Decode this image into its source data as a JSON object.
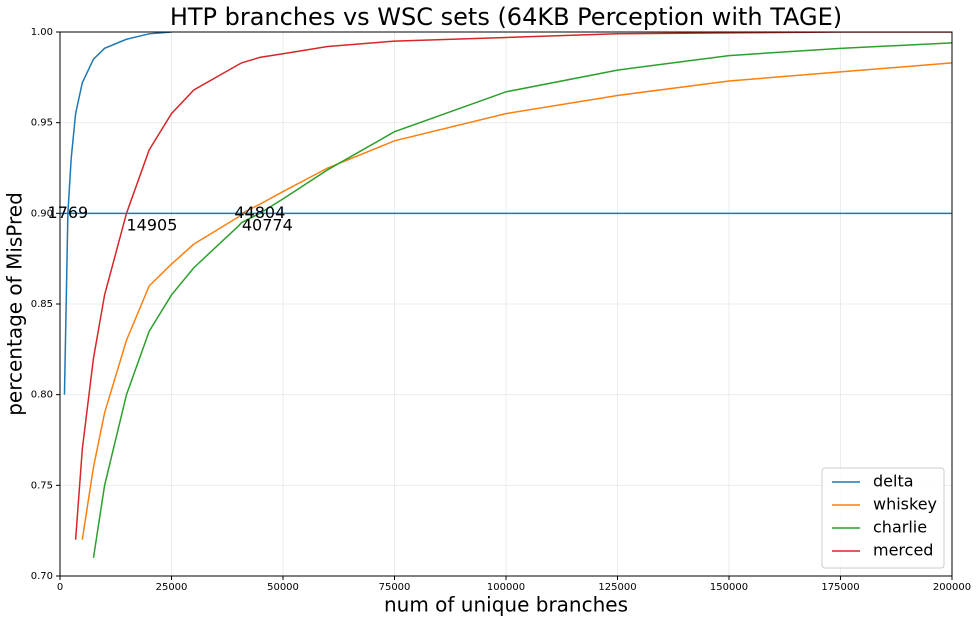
{
  "chart_data": {
    "type": "line",
    "title": "HTP branches vs WSC sets (64KB Perception with TAGE)",
    "x_label": "num of unique branches",
    "y_label": "percentage of MisPred",
    "x": [
      1000,
      1769,
      2500,
      3500,
      5000,
      7500,
      10000,
      14905,
      20000,
      25000,
      30000,
      40000,
      40774,
      44804,
      50000,
      60000,
      75000,
      100000,
      125000,
      150000,
      175000,
      200000
    ],
    "series": [
      {
        "name": "delta",
        "color": "#1f77b4",
        "values": [
          0.8,
          0.9,
          0.93,
          0.955,
          0.972,
          0.985,
          0.991,
          0.996,
          0.999,
          1.0,
          null,
          null,
          null,
          null,
          null,
          null,
          null,
          null,
          null,
          null,
          null,
          null
        ]
      },
      {
        "name": "whiskey",
        "color": "#ff7f0e",
        "values": [
          null,
          null,
          null,
          null,
          0.72,
          0.76,
          0.79,
          0.83,
          0.86,
          0.872,
          0.883,
          0.898,
          0.9,
          0.905,
          0.912,
          0.925,
          0.94,
          0.955,
          0.965,
          0.973,
          0.978,
          0.983
        ]
      },
      {
        "name": "charlie",
        "color": "#2ca02c",
        "values": [
          null,
          null,
          null,
          null,
          null,
          0.71,
          0.75,
          0.8,
          0.835,
          0.855,
          0.87,
          0.893,
          0.895,
          0.9,
          0.908,
          0.924,
          0.945,
          0.967,
          0.979,
          0.987,
          0.991,
          0.994
        ]
      },
      {
        "name": "merced",
        "color": "#d62728",
        "values": [
          null,
          null,
          null,
          0.72,
          0.77,
          0.82,
          0.855,
          0.9,
          0.935,
          0.955,
          0.968,
          0.982,
          0.983,
          0.986,
          0.988,
          0.992,
          0.995,
          0.997,
          0.999,
          0.9995,
          1.0,
          1.0
        ]
      }
    ],
    "hline": {
      "value": 0.9,
      "color": "#1f77b4"
    },
    "annotations": [
      {
        "text": "1769",
        "x": 1769,
        "y": 0.9,
        "color": "#1f77b4",
        "align": "center"
      },
      {
        "text": "14905",
        "x": 14905,
        "y": 0.893,
        "color": "#d62728",
        "align": "left"
      },
      {
        "text": "44804",
        "x": 44804,
        "y": 0.9,
        "color": "#2ca02c",
        "align": "center"
      },
      {
        "text": "40774",
        "x": 40774,
        "y": 0.893,
        "color": "#ff7f0e",
        "align": "left"
      }
    ],
    "xlim": [
      0,
      200000
    ],
    "ylim": [
      0.7,
      1.0
    ],
    "xticks": [
      0,
      25000,
      50000,
      75000,
      100000,
      125000,
      150000,
      175000,
      200000
    ],
    "yticks": [
      {
        "value": 0.7,
        "label": "0.70"
      },
      {
        "value": 0.75,
        "label": "0.75"
      },
      {
        "value": 0.8,
        "label": "0.80"
      },
      {
        "value": 0.85,
        "label": "0.85"
      },
      {
        "value": 0.9,
        "label": "0.90"
      },
      {
        "value": 0.95,
        "label": "0.95"
      },
      {
        "value": 1.0,
        "label": "1.00"
      }
    ],
    "grid": true,
    "legend": "lower right"
  }
}
